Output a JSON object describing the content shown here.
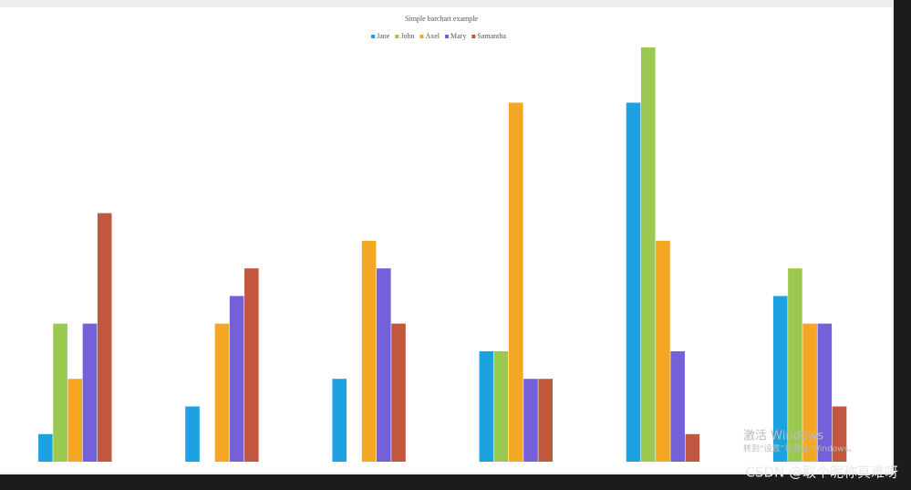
{
  "chart_data": {
    "type": "bar",
    "title": "Simple barchart example",
    "categories": [
      null,
      null,
      null,
      null,
      null,
      null
    ],
    "series": [
      {
        "name": "Jane",
        "color": "#1ea1e0",
        "values": [
          1,
          2,
          3,
          4,
          13,
          6
        ]
      },
      {
        "name": "John",
        "color": "#9bc94f",
        "values": [
          5,
          0,
          0,
          4,
          15,
          7
        ]
      },
      {
        "name": "Axel",
        "color": "#f5a623",
        "values": [
          3,
          5,
          8,
          13,
          8,
          5
        ]
      },
      {
        "name": "Mary",
        "color": "#7460d8",
        "values": [
          5,
          6,
          7,
          3,
          4,
          5
        ]
      },
      {
        "name": "Samantha",
        "color": "#c0573e",
        "values": [
          9,
          7,
          5,
          3,
          1,
          2
        ]
      }
    ],
    "ylim": [
      0,
      15
    ],
    "grid": false,
    "legend": "top"
  },
  "overlay": {
    "activation": "激活 Windows",
    "activation_hint": "转到“设置”以激活 Windows。",
    "watermark": "CSDN @取个昵称真难呀"
  }
}
